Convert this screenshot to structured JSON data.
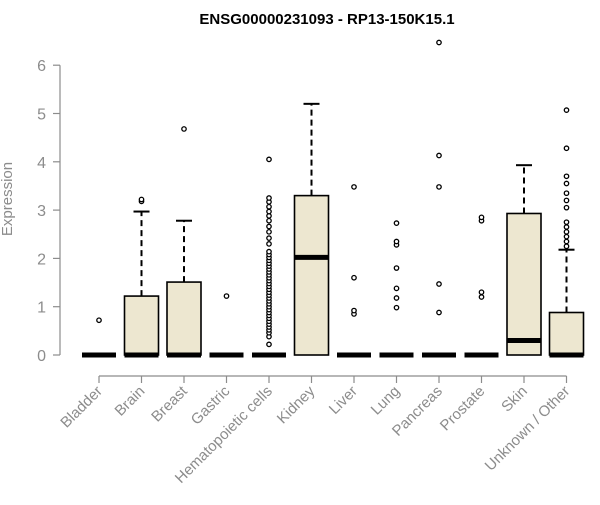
{
  "chart_data": {
    "type": "boxplot",
    "title": "ENSG00000231093 - RP13-150K15.1",
    "xlabel": "",
    "ylabel": "Expression",
    "ylim": [
      0,
      6.5
    ],
    "yticks": [
      0,
      1,
      2,
      3,
      4,
      5,
      6
    ],
    "grid": false,
    "legend": "none",
    "categories": [
      "Bladder",
      "Brain",
      "Breast",
      "Gastric",
      "Hematopoietic cells",
      "Kidney",
      "Liver",
      "Lung",
      "Pancreas",
      "Prostate",
      "Skin",
      "Unknown / Other"
    ],
    "series": [
      {
        "boxes": [
          {
            "category": "Bladder",
            "whisker_low": 0,
            "q1": 0,
            "median": 0,
            "q3": 0,
            "whisker_high": 0,
            "outliers": [
              0.72
            ]
          },
          {
            "category": "Brain",
            "whisker_low": 0,
            "q1": 0,
            "median": 0,
            "q3": 1.22,
            "whisker_high": 2.97,
            "outliers": [
              3.18,
              3.22
            ]
          },
          {
            "category": "Breast",
            "whisker_low": 0,
            "q1": 0,
            "median": 0,
            "q3": 1.51,
            "whisker_high": 2.78,
            "outliers": [
              4.68
            ]
          },
          {
            "category": "Gastric",
            "whisker_low": 0,
            "q1": 0,
            "median": 0,
            "q3": 0,
            "whisker_high": 0,
            "outliers": [
              1.22
            ]
          },
          {
            "category": "Hematopoietic cells",
            "whisker_low": 0,
            "q1": 0,
            "median": 0,
            "q3": 0,
            "whisker_high": 0,
            "outliers": [
              0.22,
              0.38,
              0.46,
              0.52,
              0.58,
              0.64,
              0.7,
              0.76,
              0.82,
              0.88,
              0.94,
              1.0,
              1.06,
              1.12,
              1.18,
              1.24,
              1.3,
              1.36,
              1.42,
              1.48,
              1.54,
              1.6,
              1.66,
              1.72,
              1.78,
              1.84,
              1.9,
              1.96,
              2.02,
              2.08,
              2.14,
              2.3,
              2.42,
              2.55,
              2.66,
              2.78,
              2.88,
              2.97,
              3.07,
              3.17,
              3.25,
              4.05
            ]
          },
          {
            "category": "Kidney",
            "whisker_low": 0,
            "q1": 0,
            "median": 2.02,
            "q3": 3.3,
            "whisker_high": 5.2,
            "outliers": []
          },
          {
            "category": "Liver",
            "whisker_low": 0,
            "q1": 0,
            "median": 0,
            "q3": 0,
            "whisker_high": 0,
            "outliers": [
              0.85,
              0.92,
              1.6,
              3.48
            ]
          },
          {
            "category": "Lung",
            "whisker_low": 0,
            "q1": 0,
            "median": 0,
            "q3": 0,
            "whisker_high": 0,
            "outliers": [
              0.98,
              1.18,
              1.38,
              1.8,
              2.28,
              2.35,
              2.73
            ]
          },
          {
            "category": "Pancreas",
            "whisker_low": 0,
            "q1": 0,
            "median": 0,
            "q3": 0,
            "whisker_high": 0,
            "outliers": [
              0.88,
              1.47,
              3.48,
              4.13,
              6.47
            ]
          },
          {
            "category": "Prostate",
            "whisker_low": 0,
            "q1": 0,
            "median": 0,
            "q3": 0,
            "whisker_high": 0,
            "outliers": [
              1.2,
              1.3,
              2.78,
              2.85
            ]
          },
          {
            "category": "Skin",
            "whisker_low": 0,
            "q1": 0,
            "median": 0.3,
            "q3": 2.93,
            "whisker_high": 3.93,
            "outliers": []
          },
          {
            "category": "Unknown / Other",
            "whisker_low": 0,
            "q1": 0,
            "median": 0,
            "q3": 0.88,
            "whisker_high": 2.18,
            "outliers": [
              2.25,
              2.35,
              2.45,
              2.55,
              2.65,
              2.75,
              3.05,
              3.2,
              3.35,
              3.55,
              3.7,
              4.28,
              5.07
            ]
          }
        ]
      }
    ]
  },
  "colors": {
    "box_fill": "#ede7d0",
    "box_stroke": "#000000",
    "median": "#000000",
    "axis": "#8c8c8c",
    "title": "#000000"
  }
}
